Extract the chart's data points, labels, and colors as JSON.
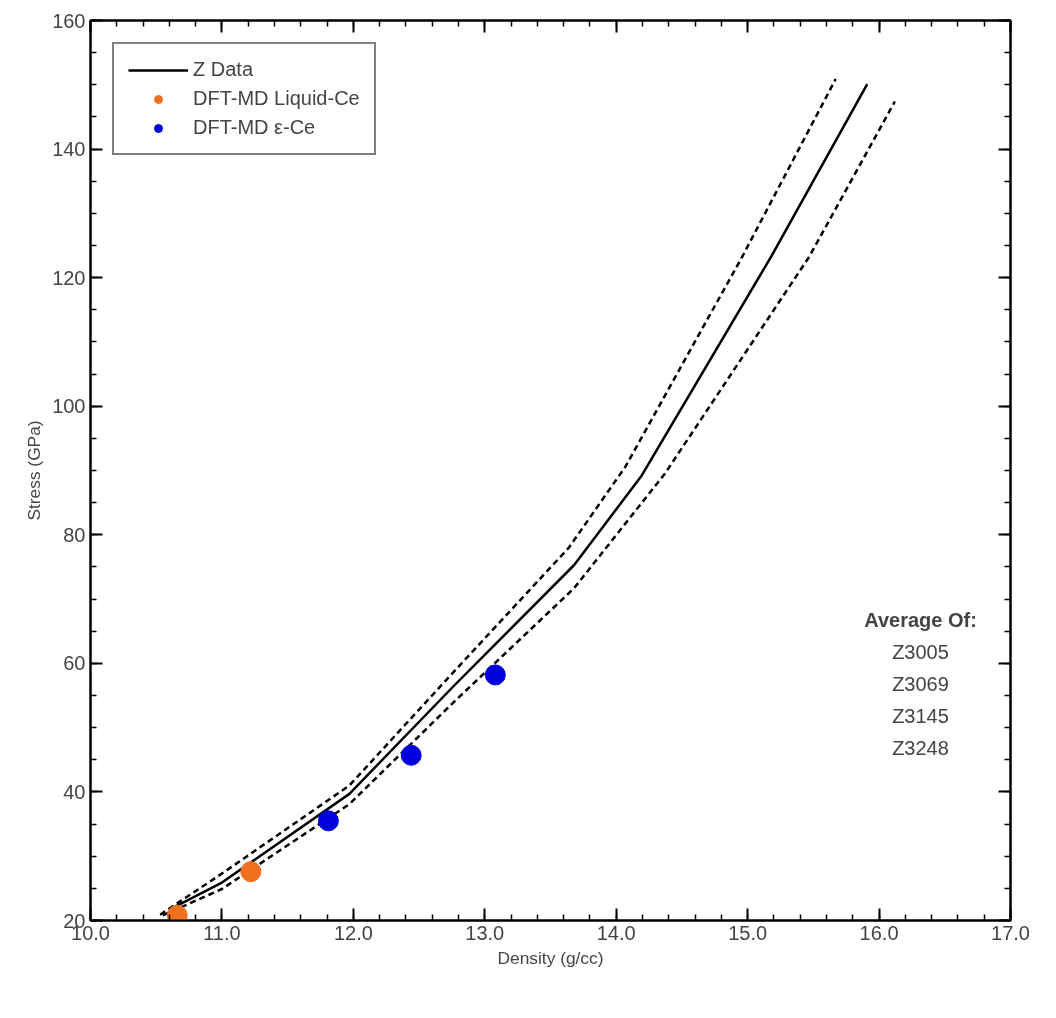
{
  "chart_data": {
    "type": "line",
    "xlabel": "Density (g/cc)",
    "ylabel": "Stress (GPa)",
    "xlim": [
      10,
      17
    ],
    "ylim": [
      20,
      160
    ],
    "xticks": [
      {
        "value": 10,
        "label": "10.0"
      },
      {
        "value": 11,
        "label": "11.0"
      },
      {
        "value": 12,
        "label": "12.0"
      },
      {
        "value": 13,
        "label": "13.0"
      },
      {
        "value": 14,
        "label": "14.0"
      },
      {
        "value": 15,
        "label": "15.0"
      },
      {
        "value": 16,
        "label": "16.0"
      },
      {
        "value": 17,
        "label": "17.0"
      }
    ],
    "yticks": [
      20,
      40,
      60,
      80,
      100,
      120,
      140,
      160
    ],
    "grid": false,
    "legend": "top left",
    "series": [
      {
        "name": "Z Data",
        "line_style": "solid",
        "color": "#000000",
        "x": [
          10.63,
          11.0,
          11.97,
          12.76,
          13.68,
          14.19,
          15.18,
          15.91
        ],
        "values": [
          22.0,
          25.9,
          39.7,
          56.4,
          75.3,
          89.1,
          123.3,
          150.1
        ]
      },
      {
        "line_style": "dashed",
        "color": "#000000",
        "x": [
          10.53,
          11.0,
          11.97,
          12.76,
          13.64,
          14.07,
          14.96,
          15.67
        ],
        "values": [
          20.9,
          27.3,
          41.0,
          58.6,
          78.0,
          90.6,
          123.3,
          150.9
        ]
      },
      {
        "line_style": "dashed",
        "color": "#000000",
        "x": [
          10.55,
          11.0,
          11.97,
          12.76,
          13.68,
          14.37,
          15.47,
          16.12
        ],
        "values": [
          20.8,
          24.9,
          38.1,
          53.9,
          71.7,
          89.5,
          123.3,
          147.4
        ]
      },
      {
        "name": "DFT-MD Liquid-Ce",
        "type": "scatter",
        "marker": "circle",
        "color": "#f07020",
        "x": [
          10.66,
          11.22
        ],
        "values": [
          20.8,
          27.6
        ]
      },
      {
        "name": "DFT-MD ε-Ce",
        "type": "scatter",
        "marker": "circle",
        "color": "#0000dd",
        "x": [
          11.81,
          12.44,
          13.08
        ],
        "values": [
          35.5,
          45.7,
          58.2
        ]
      }
    ],
    "annotations": [
      "Average Of:",
      "Z3005",
      "Z3069",
      "Z3145",
      "Z3248"
    ]
  }
}
